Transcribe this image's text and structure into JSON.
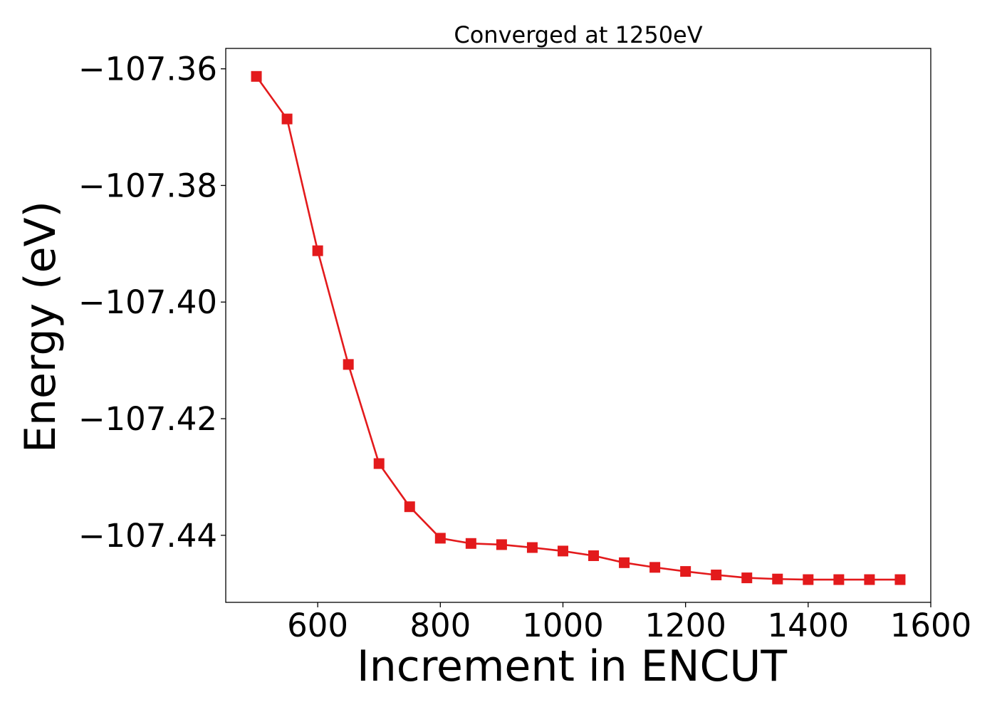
{
  "chart_data": {
    "type": "line",
    "title": "Converged at 1250eV",
    "xlabel": "Increment in ENCUT",
    "ylabel": "Energy (eV)",
    "xlim": [
      450,
      1600
    ],
    "ylim": [
      -107.4515,
      -107.3565
    ],
    "x_ticks": [
      600,
      800,
      1000,
      1200,
      1400,
      1600
    ],
    "x_tick_labels": [
      "600",
      "800",
      "1000",
      "1200",
      "1400",
      "1600"
    ],
    "y_ticks": [
      -107.36,
      -107.38,
      -107.4,
      -107.42,
      -107.44
    ],
    "y_tick_labels": [
      "−107.36",
      "−107.38",
      "−107.40",
      "−107.42",
      "−107.44"
    ],
    "grid": false,
    "legend": "none",
    "series": [
      {
        "color": "#e31a1c",
        "marker": "square",
        "x": [
          500,
          550,
          600,
          650,
          700,
          750,
          800,
          850,
          900,
          950,
          1000,
          1050,
          1100,
          1150,
          1200,
          1250,
          1300,
          1350,
          1400,
          1450,
          1500,
          1550
        ],
        "y": [
          -107.3613,
          -107.3686,
          -107.3912,
          -107.4107,
          -107.4277,
          -107.4351,
          -107.4405,
          -107.4414,
          -107.4416,
          -107.4421,
          -107.4427,
          -107.4435,
          -107.4447,
          -107.4455,
          -107.4462,
          -107.4468,
          -107.4473,
          -107.4475,
          -107.4476,
          -107.4476,
          -107.4476,
          -107.4476
        ]
      }
    ]
  }
}
